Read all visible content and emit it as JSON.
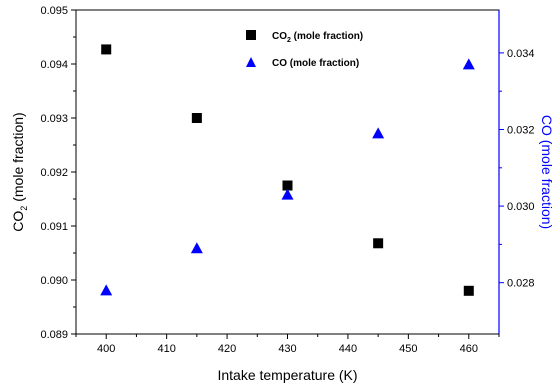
{
  "chart_data": {
    "type": "scatter",
    "xlabel": "Intake temperature (K)",
    "x": [
      400,
      415,
      430,
      445,
      460
    ],
    "xlim": [
      395,
      465
    ],
    "xticks": [
      400,
      410,
      420,
      430,
      440,
      450,
      460
    ],
    "y_left": {
      "label_main": "CO",
      "label_sub": "2",
      "label_rest": " (mole fraction)",
      "ylim": [
        0.089,
        0.095
      ],
      "ticks": [
        "0.089",
        "0.090",
        "0.091",
        "0.092",
        "0.093",
        "0.094",
        "0.095"
      ]
    },
    "y_right": {
      "label": "CO (mole fraction)",
      "ylim": [
        0.02666,
        0.03512
      ],
      "ticks": [
        "0.028",
        "0.030",
        "0.032",
        "0.034"
      ],
      "color": "#0000ff"
    },
    "series": [
      {
        "name_main": "CO",
        "name_sub": "2",
        "name_rest": " (mole fraction)",
        "axis": "left",
        "marker": "square",
        "color": "#000000",
        "values": [
          0.09427,
          0.093,
          0.09175,
          0.09068,
          0.0898
        ]
      },
      {
        "name": "CO (mole fraction)",
        "axis": "right",
        "marker": "triangle",
        "color": "#0000ff",
        "values": [
          0.0278,
          0.0289,
          0.0303,
          0.0319,
          0.0337
        ]
      }
    ],
    "legend_position": "top-center"
  }
}
